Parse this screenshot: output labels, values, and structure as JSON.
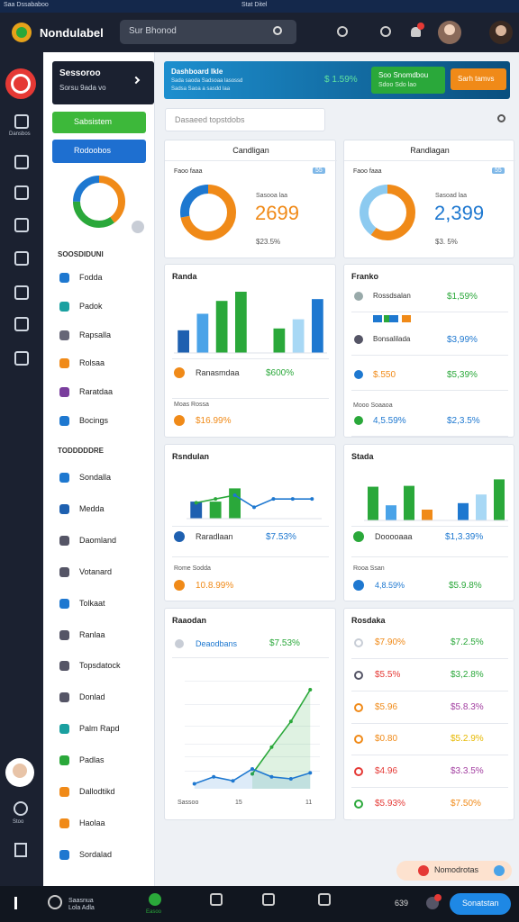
{
  "titlebar": {
    "left": "Saa Dssababoo",
    "center": "Stat Ditel"
  },
  "header": {
    "brand": "Nondulabel",
    "search": "Sur Bhonod"
  },
  "rail": {
    "label": "Dansbos",
    "bottom": "Stoo"
  },
  "panel": {
    "title": "Sessoroo",
    "subtitle": "Sorsu 9ada vo",
    "button_green": "Sabsistem",
    "button_blue": "Rodoobos",
    "donut": {
      "values": [
        40,
        35,
        25
      ],
      "colors": [
        "#f08a18",
        "#2aa83a",
        "#1e78d0"
      ]
    },
    "sections": [
      {
        "heading": "SOOSDIDUNI",
        "items": [
          "Fodda",
          "Padok",
          "Rapsalla",
          "Rolsaa",
          "Raratdaa",
          "Bocings"
        ]
      },
      {
        "heading": "TODDDDDRE",
        "items": [
          "Sondalla",
          "Medda",
          "Daomland",
          "Votanard",
          "Tolkaat",
          "Ranlaa",
          "Topsdatock",
          "Donlad",
          "Palm Rapd",
          "Padlas",
          "Dallodtikd",
          "Haolaa",
          "Sordalad"
        ]
      }
    ]
  },
  "banner": {
    "title": "Dashboard Ikle",
    "line1": "Sada saoda Sadsoaa lasossd",
    "line2": "Sadsa Saoa a sasdd laa",
    "value": "$ 1.59%",
    "button_green": "Soo Snomdbou",
    "button_green_sub": "Sdoo Sdo lao",
    "button_orange": "Sarh tamvs"
  },
  "filter": "Dasaeed topstdobs",
  "cards": {
    "kpi_left": {
      "title": "Candligan",
      "label": "Faoo faaa",
      "badge": "55",
      "sub": "Sasooa laa",
      "value": "2699",
      "foot": "$23.5%",
      "donut": {
        "values": [
          72,
          28
        ],
        "colors": [
          "#f08a18",
          "#1e78d0"
        ]
      }
    },
    "kpi_right": {
      "title": "Randlagan",
      "label": "Faoo faaa",
      "badge": "55",
      "sub": "Sasoad laa",
      "value": "2,399",
      "foot": "$3. 5%",
      "donut": {
        "values": [
          60,
          40
        ],
        "colors": [
          "#f08a18",
          "#8ccaf0"
        ]
      }
    },
    "bars_left": {
      "title": "Randa",
      "ylim": [
        0,
        100
      ],
      "values": [
        37,
        64,
        85,
        100,
        null,
        40,
        55,
        88
      ],
      "colors": [
        "#1e60b0",
        "#4aa3e8",
        "#2aa83a",
        "#2aa83a",
        null,
        "#2aa83a",
        "#a8d8f5",
        "#1e78d0"
      ],
      "row_label": "Ranasmdaa",
      "row_value": "$600%",
      "section": "Moas Rossa",
      "foot_value": "$16.99%"
    },
    "list_right": {
      "title": "Franko",
      "rows": [
        [
          "Rossdsalan",
          "$1,59%"
        ],
        [
          "Bonsalilada",
          "$3,99%"
        ],
        [
          "$.550",
          "$5,39%"
        ],
        [
          "4,5.59%",
          "$2,3.5%"
        ]
      ],
      "section": "Mooo Soaaoa"
    },
    "combo_left": {
      "title": "Rsndulan",
      "ylim": [
        0,
        100
      ],
      "bars": [
        45,
        45,
        80,
        null,
        null,
        null,
        null
      ],
      "bar_colors": [
        "#1e60b0",
        "#2aa83a",
        "#2aa83a",
        null,
        null,
        null,
        null
      ],
      "series": [
        {
          "color": "#2aa83a",
          "values": [
            42,
            52,
            62,
            null,
            null,
            null,
            null
          ]
        },
        {
          "color": "#1e78d0",
          "values": [
            null,
            null,
            62,
            30,
            52,
            52,
            52
          ]
        }
      ],
      "row_label": "Raradlaan",
      "row_value": "$7.53%",
      "section": "Rome Sodda",
      "foot_value": "10.8.99%"
    },
    "bars_right": {
      "title": "Stada",
      "ylim": [
        0,
        100
      ],
      "values": [
        78,
        35,
        80,
        25,
        null,
        40,
        60,
        95
      ],
      "colors": [
        "#2aa83a",
        "#4aa3e8",
        "#2aa83a",
        "#f08a18",
        null,
        "#1e78d0",
        "#a8d8f5",
        "#2aa83a"
      ],
      "row_label": "Dooooaaa",
      "row_value": "$1,3.39%",
      "section": "Rooa Ssan",
      "foot_left": "4,8.59%",
      "foot_value": "$5.9.8%"
    },
    "area_left": {
      "title": "Raaodan",
      "row_label": "Deaodbans",
      "row_value": "$7.53%",
      "ylim": [
        0,
        100
      ],
      "series": [
        {
          "color": "#2aa83a",
          "values": [
            null,
            null,
            null,
            15,
            42,
            68,
            100
          ]
        },
        {
          "color": "#1e78d0",
          "values": [
            5,
            12,
            8,
            20,
            12,
            10,
            16
          ]
        }
      ],
      "x_labels": [
        "Sassoo",
        "15",
        "11"
      ]
    },
    "table_right": {
      "title": "Rosdaka",
      "rows": [
        [
          "$7.90%",
          "$7.2.5%"
        ],
        [
          "$5.5%",
          "$3,2.8%"
        ],
        [
          "$5.96",
          "$5.8.3%"
        ],
        [
          "$0.80",
          "$5.2.9%"
        ],
        [
          "$4.96",
          "$3.3.5%"
        ],
        [
          "$5.93%",
          "$7.50%"
        ]
      ]
    }
  },
  "footer": {
    "label": "Saasnua Lola Adla",
    "active": "Easoo",
    "count": "639",
    "button": "Sonatstan"
  },
  "toast": "Nomodrotas"
}
